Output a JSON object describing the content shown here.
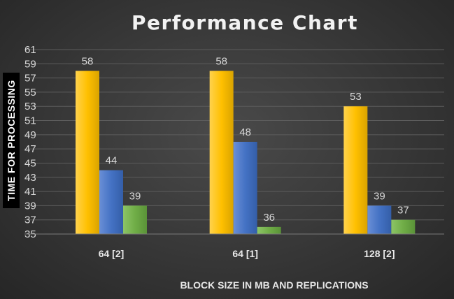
{
  "chart_data": {
    "type": "bar",
    "title": "Performance Chart",
    "xlabel": "BLOCK SIZE IN MB AND REPLICATIONS",
    "ylabel": "TIME FOR PROCESSING",
    "categories": [
      "64 [2]",
      "64 [1]",
      "128 [2]"
    ],
    "series": [
      {
        "values": [
          58,
          58,
          53
        ],
        "color": "#ffc000"
      },
      {
        "values": [
          44,
          48,
          39
        ],
        "color": "#4472c4"
      },
      {
        "values": [
          39,
          36,
          37
        ],
        "color": "#70ad47"
      }
    ],
    "ylim": [
      35,
      61
    ],
    "yticks": [
      35,
      37,
      39,
      41,
      43,
      45,
      47,
      49,
      51,
      53,
      55,
      57,
      59,
      61
    ],
    "grid": true,
    "legend": "none"
  }
}
